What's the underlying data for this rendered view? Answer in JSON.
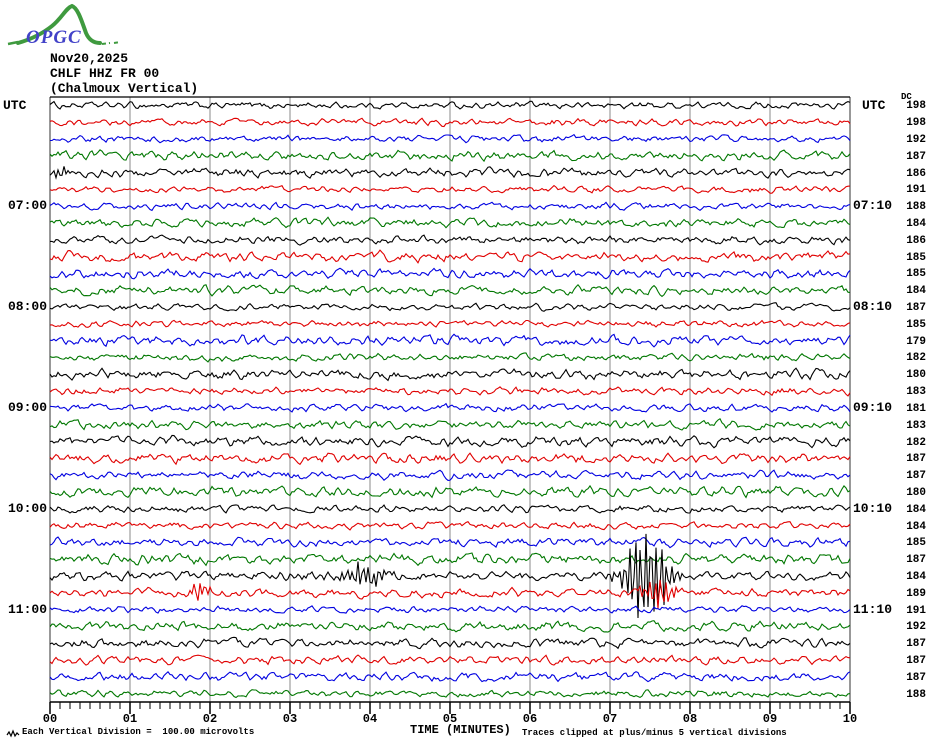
{
  "header": {
    "logo_text": "OPGC",
    "date": "Nov20,2025",
    "station_code": "CHLF HHZ FR 00",
    "station_name": "(Chalmoux Vertical)"
  },
  "left_axis": {
    "title": "UTC",
    "labels": [
      {
        "row": 6,
        "text": "07:00"
      },
      {
        "row": 12,
        "text": "08:00"
      },
      {
        "row": 18,
        "text": "09:00"
      },
      {
        "row": 24,
        "text": "10:00"
      },
      {
        "row": 30,
        "text": "11:00"
      }
    ]
  },
  "right_axis": {
    "title": "UTC",
    "dc_header": "DC",
    "labels": [
      {
        "row": 6,
        "text": "07:10"
      },
      {
        "row": 12,
        "text": "08:10"
      },
      {
        "row": 18,
        "text": "09:10"
      },
      {
        "row": 24,
        "text": "10:10"
      },
      {
        "row": 30,
        "text": "11:10"
      }
    ]
  },
  "x_axis": {
    "title": "TIME (MINUTES)",
    "tick_labels": [
      "00",
      "01",
      "02",
      "03",
      "04",
      "05",
      "06",
      "07",
      "08",
      "09",
      "10"
    ]
  },
  "footer": {
    "scale_note": "Each Vertical Division =  100.00 microvolts",
    "clip_note": "Traces clipped at plus/minus 5 vertical divisions"
  },
  "chart_data": {
    "type": "line",
    "subtype": "helicorder",
    "title": "CHLF HHZ FR 00 (Chalmoux Vertical) Nov20,2025",
    "xlabel": "TIME (MINUTES)",
    "x_range_minutes": [
      0,
      10
    ],
    "minutes_per_row": 10,
    "rows_total": 36,
    "microvolts_per_division": 100.0,
    "clip_divisions": 5,
    "grid": true,
    "trace_color_cycle": [
      "black",
      "red",
      "blue",
      "green"
    ],
    "colors": {
      "black": "#000000",
      "red": "#e00000",
      "blue": "#0000e0",
      "green": "#007700",
      "grid": "#8a8a8a",
      "border": "#303030"
    },
    "rows": [
      {
        "utc": "06:00",
        "color": "black",
        "dc": 198
      },
      {
        "utc": "06:10",
        "color": "red",
        "dc": 198
      },
      {
        "utc": "06:20",
        "color": "blue",
        "dc": 192
      },
      {
        "utc": "06:30",
        "color": "green",
        "dc": 187
      },
      {
        "utc": "06:40",
        "color": "black",
        "dc": 186
      },
      {
        "utc": "06:50",
        "color": "red",
        "dc": 191
      },
      {
        "utc": "07:00",
        "color": "blue",
        "dc": 188
      },
      {
        "utc": "07:10",
        "color": "green",
        "dc": 184
      },
      {
        "utc": "07:20",
        "color": "black",
        "dc": 186
      },
      {
        "utc": "07:30",
        "color": "red",
        "dc": 185
      },
      {
        "utc": "07:40",
        "color": "blue",
        "dc": 185
      },
      {
        "utc": "07:50",
        "color": "green",
        "dc": 184
      },
      {
        "utc": "08:00",
        "color": "black",
        "dc": 187
      },
      {
        "utc": "08:10",
        "color": "red",
        "dc": 185
      },
      {
        "utc": "08:20",
        "color": "blue",
        "dc": 179
      },
      {
        "utc": "08:30",
        "color": "green",
        "dc": 182
      },
      {
        "utc": "08:40",
        "color": "black",
        "dc": 180
      },
      {
        "utc": "08:50",
        "color": "red",
        "dc": 183
      },
      {
        "utc": "09:00",
        "color": "blue",
        "dc": 181
      },
      {
        "utc": "09:10",
        "color": "green",
        "dc": 183
      },
      {
        "utc": "09:20",
        "color": "black",
        "dc": 182
      },
      {
        "utc": "09:30",
        "color": "red",
        "dc": 187
      },
      {
        "utc": "09:40",
        "color": "blue",
        "dc": 187
      },
      {
        "utc": "09:50",
        "color": "green",
        "dc": 180
      },
      {
        "utc": "10:00",
        "color": "black",
        "dc": 184
      },
      {
        "utc": "10:10",
        "color": "red",
        "dc": 184
      },
      {
        "utc": "10:20",
        "color": "blue",
        "dc": 185
      },
      {
        "utc": "10:30",
        "color": "green",
        "dc": 187
      },
      {
        "utc": "10:40",
        "color": "black",
        "dc": 184
      },
      {
        "utc": "10:50",
        "color": "red",
        "dc": 189
      },
      {
        "utc": "11:00",
        "color": "blue",
        "dc": 191
      },
      {
        "utc": "11:10",
        "color": "green",
        "dc": 192
      },
      {
        "utc": "11:20",
        "color": "black",
        "dc": 187
      },
      {
        "utc": "11:30",
        "color": "red",
        "dc": 187
      },
      {
        "utc": "11:40",
        "color": "blue",
        "dc": 187
      },
      {
        "utc": "11:50",
        "color": "green",
        "dc": 188
      }
    ],
    "events": [
      {
        "row": 4,
        "row_utc": "06:40",
        "minute": 0.12,
        "width_min": 0.18,
        "peak_divisions": 1.0,
        "spike": false,
        "note": "small wiggle at row start"
      },
      {
        "row": 28,
        "row_utc": "10:40",
        "minute": 3.93,
        "width_min": 0.5,
        "peak_divisions": 1.8,
        "spike": false,
        "note": "moderate event burst"
      },
      {
        "row": 28,
        "row_utc": "10:40",
        "minute": 7.45,
        "width_min": 0.5,
        "peak_divisions": 8.0,
        "spike": true,
        "note": "large clipped event"
      },
      {
        "row": 29,
        "row_utc": "10:50",
        "minute": 1.88,
        "width_min": 0.28,
        "peak_divisions": 1.1,
        "spike": false,
        "note": "small burst"
      },
      {
        "row": 29,
        "row_utc": "10:50",
        "minute": 7.62,
        "width_min": 0.4,
        "peak_divisions": 2.0,
        "spike": false,
        "note": "moderate burst"
      }
    ]
  }
}
